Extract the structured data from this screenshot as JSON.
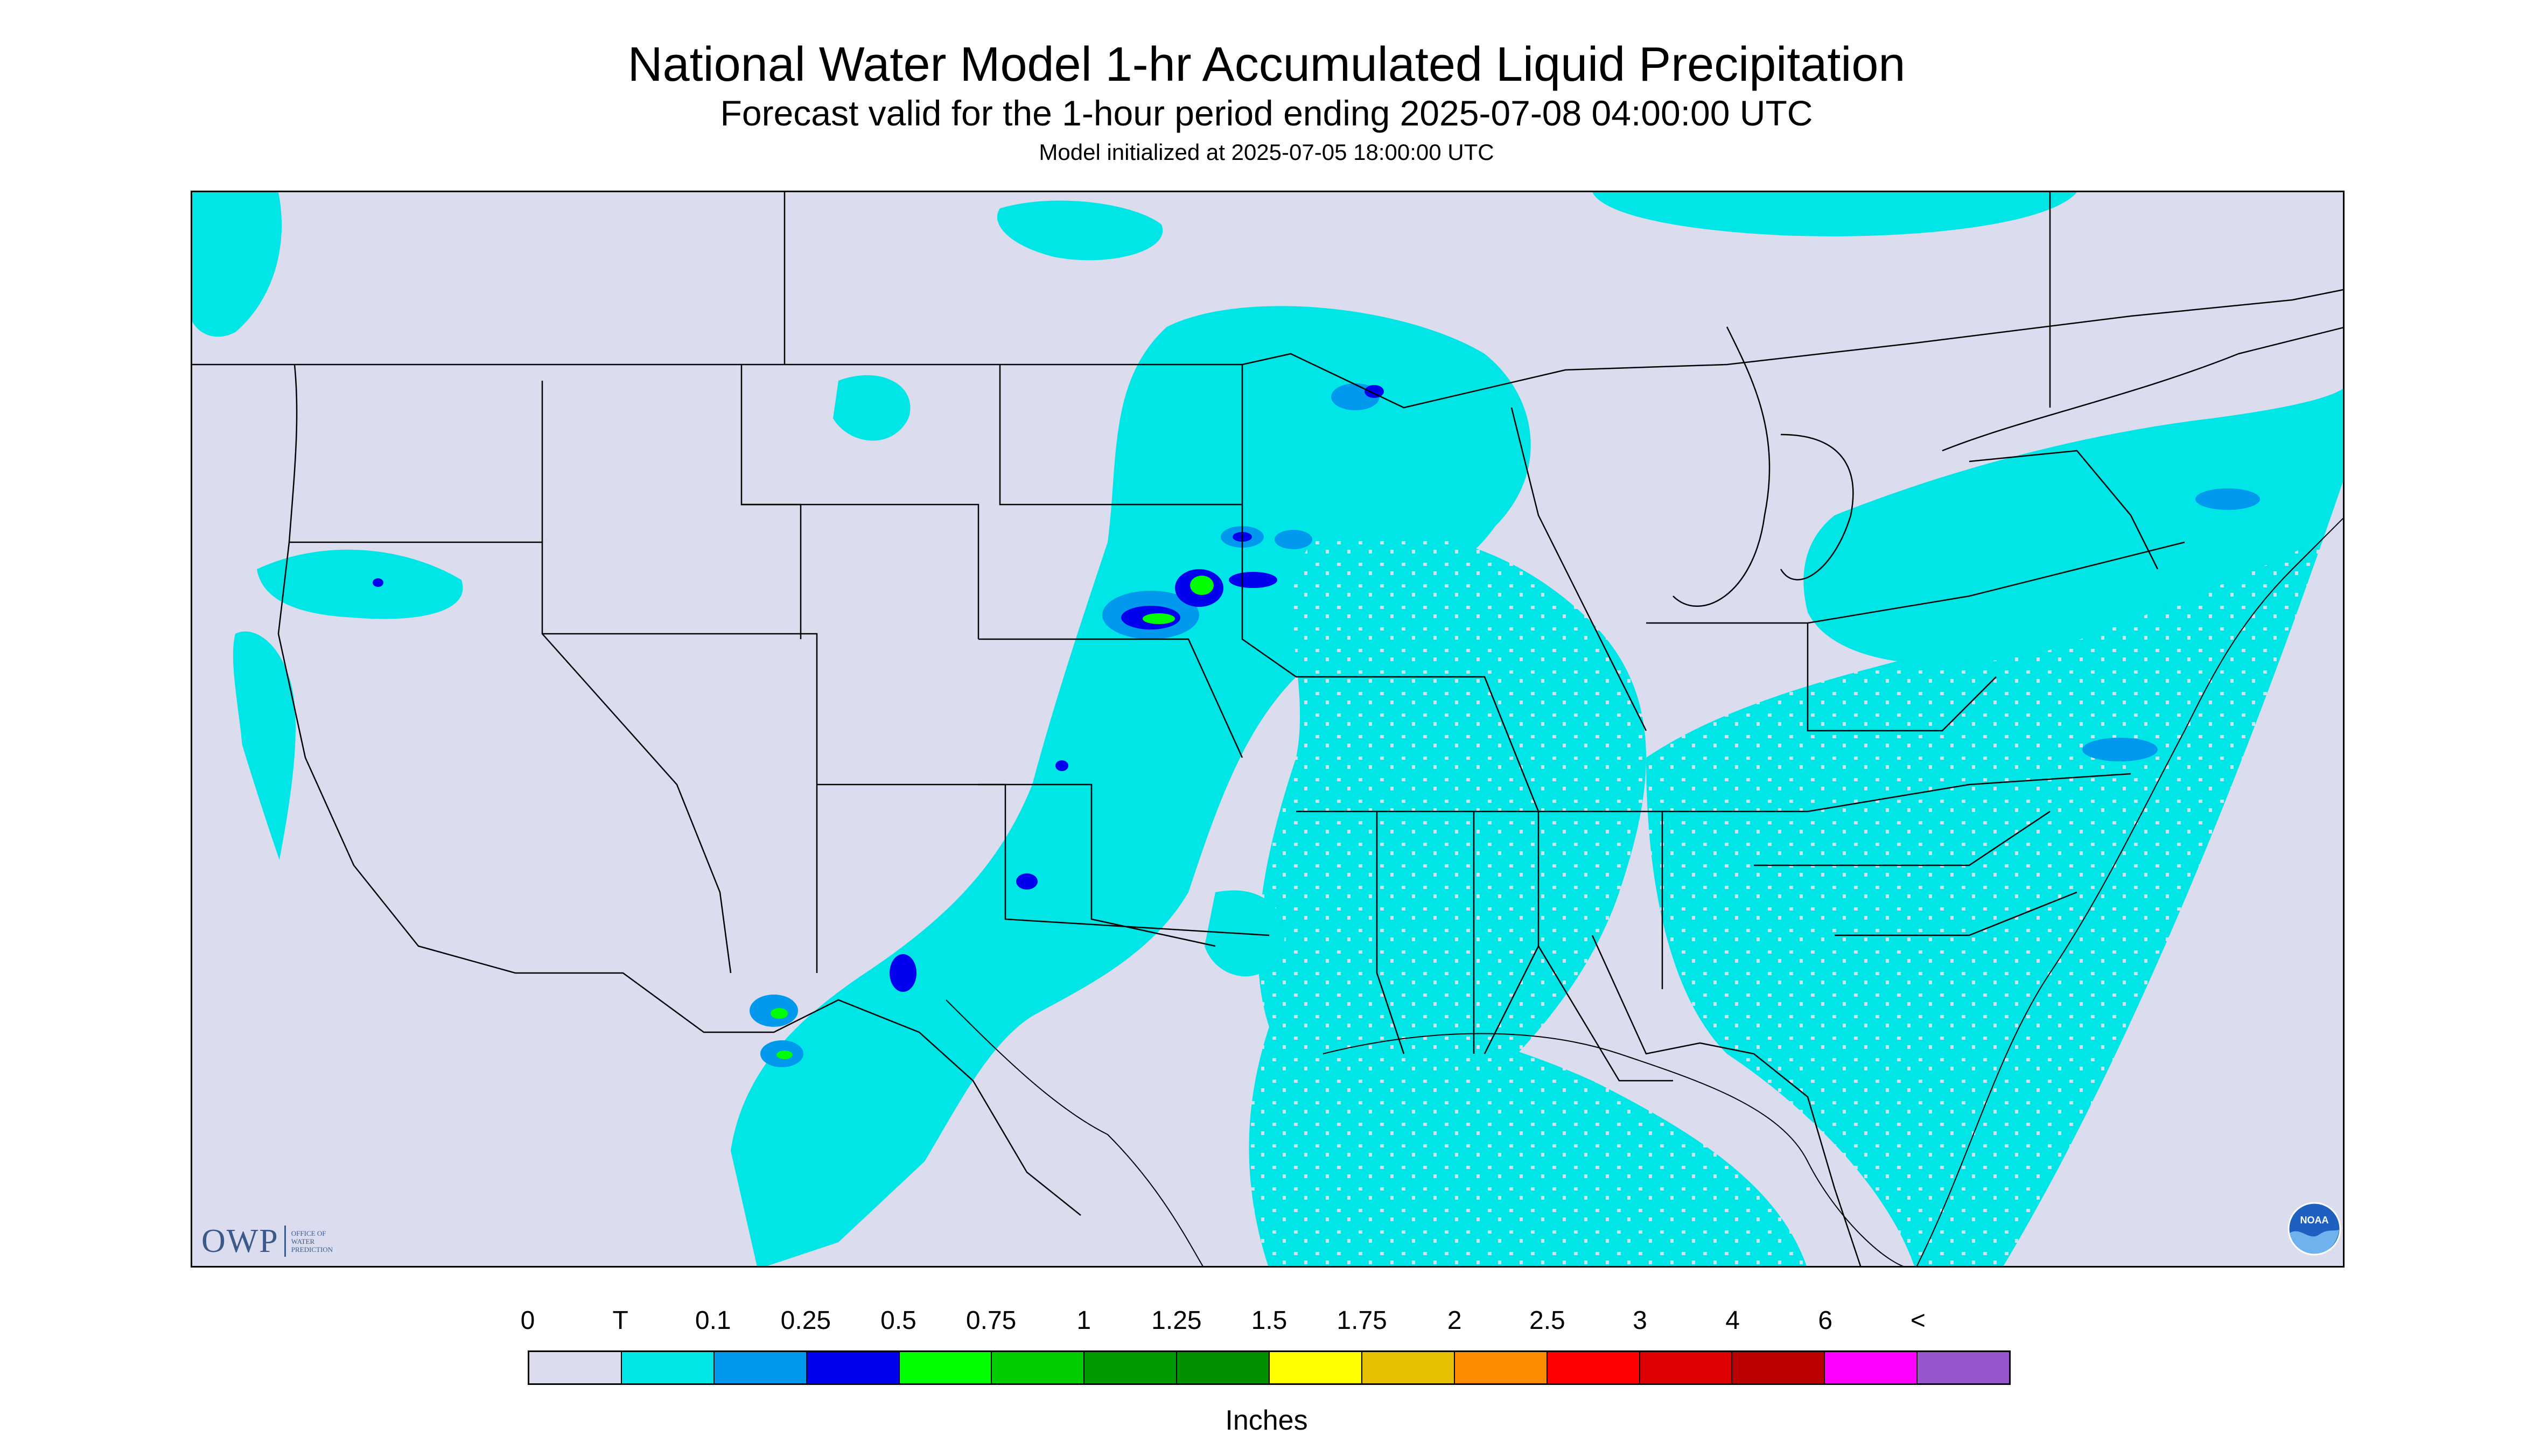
{
  "header": {
    "title": "National Water Model 1-hr Accumulated Liquid Precipitation",
    "subtitle": "Forecast valid for the 1-hour period ending 2025-07-08 04:00:00 UTC",
    "init": "Model initialized at 2025-07-05 18:00:00 UTC"
  },
  "logo": {
    "owp_text": "OWP",
    "owp_lines": [
      "OFFICE OF",
      "WATER",
      "PREDICTION"
    ],
    "noaa_text": "NOAA"
  },
  "colors": {
    "background_map": "#dcdcef",
    "trace": "#00e5e5",
    "light_blue": "#0099ee",
    "blue": "#0000ee",
    "green": "#00ff00"
  },
  "legend": {
    "labels": [
      "0",
      "T",
      "0.1",
      "0.25",
      "0.5",
      "0.75",
      "1",
      "1.25",
      "1.5",
      "1.75",
      "2",
      "2.5",
      "3",
      "4",
      "6",
      "<"
    ],
    "colors": [
      "#dcdcef",
      "#00e5e5",
      "#0099ee",
      "#0000ee",
      "#00ff00",
      "#00cc00",
      "#009900",
      "#009000",
      "#ffff00",
      "#e5bf00",
      "#ff8c00",
      "#ff0000",
      "#dd0000",
      "#bb0000",
      "#ff00ff",
      "#9955cc"
    ],
    "units": "Inches"
  }
}
